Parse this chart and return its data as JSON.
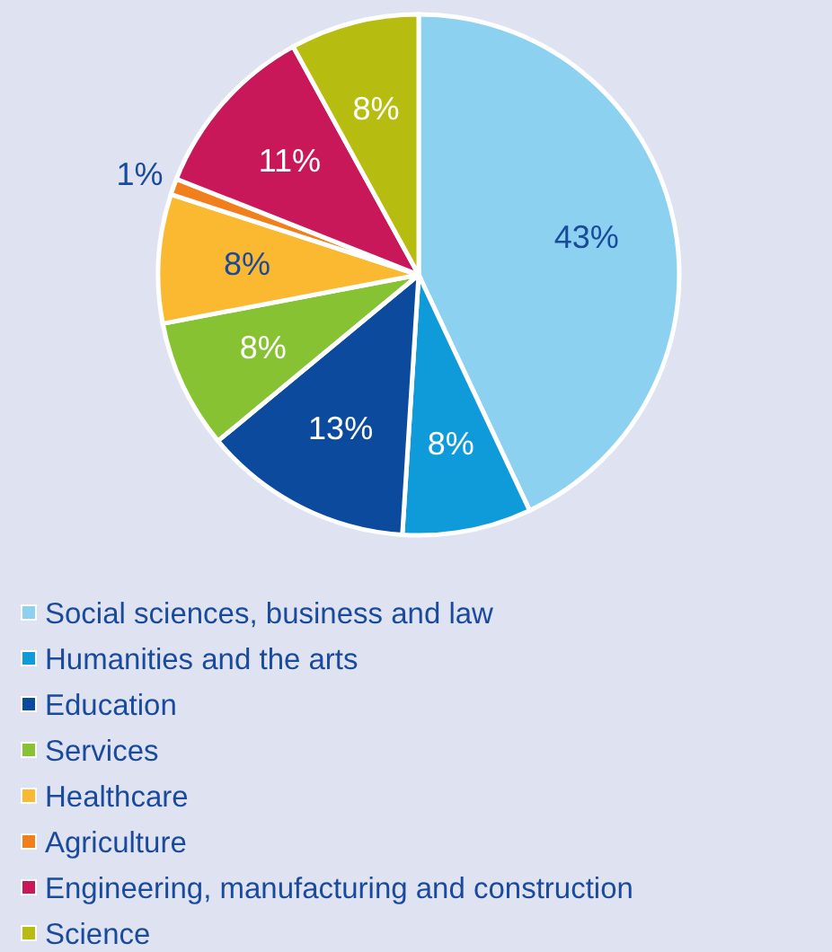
{
  "chart_data": {
    "type": "pie",
    "categories": [
      "Social sciences, business and law",
      "Humanities and the arts",
      "Education",
      "Services",
      "Healthcare",
      "Agriculture",
      "Engineering, manufacturing and construction",
      "Science"
    ],
    "values": [
      43,
      8,
      13,
      8,
      8,
      1,
      11,
      8
    ],
    "colors": [
      "#8dd1f1",
      "#0f9ad9",
      "#0b4a9c",
      "#86c232",
      "#fbb831",
      "#f07f1c",
      "#c9185a",
      "#b7bd10"
    ],
    "value_labels": [
      "43%",
      "8%",
      "13%",
      "8%",
      "8%",
      "1%",
      "11%",
      "8%"
    ],
    "legend": "bottom"
  }
}
